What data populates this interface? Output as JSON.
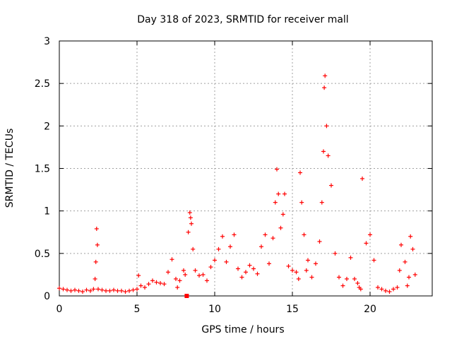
{
  "chart_data": {
    "type": "scatter",
    "title": "Day 318 of 2023, SRMTID for receiver mall",
    "xlabel": "GPS time / hours",
    "ylabel": "SRMTID / TECUs",
    "xlim": [
      0,
      24
    ],
    "ylim": [
      0,
      3
    ],
    "xticks": [
      0,
      5,
      10,
      15,
      20
    ],
    "xtick_labels": [
      "0",
      "5",
      "10",
      "15",
      "20"
    ],
    "yticks": [
      0,
      0.5,
      1,
      1.5,
      2,
      2.5,
      3
    ],
    "ytick_labels": [
      "0",
      "0.5",
      "1",
      "1.5",
      "2",
      "2.5",
      "3"
    ],
    "grid": true,
    "marker": "+",
    "color": "#ff0000",
    "series": [
      {
        "name": "SRMTID",
        "x": [
          0.0,
          0.25,
          0.5,
          0.75,
          1.0,
          1.25,
          1.5,
          1.75,
          2.0,
          2.2,
          2.3,
          2.35,
          2.4,
          2.45,
          2.5,
          2.75,
          3.0,
          3.25,
          3.5,
          3.75,
          4.0,
          4.25,
          4.5,
          4.75,
          5.0,
          5.1,
          5.25,
          5.5,
          5.75,
          6.0,
          6.25,
          6.5,
          6.75,
          7.0,
          7.25,
          7.5,
          7.6,
          7.75,
          8.0,
          8.1,
          8.3,
          8.4,
          8.45,
          8.5,
          8.6,
          8.75,
          9.0,
          9.25,
          9.5,
          9.75,
          10.0,
          10.25,
          10.5,
          10.75,
          11.0,
          11.25,
          11.5,
          11.75,
          12.0,
          12.25,
          12.5,
          12.75,
          13.0,
          13.25,
          13.5,
          13.75,
          13.9,
          14.0,
          14.1,
          14.25,
          14.4,
          14.5,
          14.75,
          15.0,
          15.25,
          15.4,
          15.5,
          15.6,
          15.75,
          15.9,
          16.0,
          16.25,
          16.5,
          16.75,
          16.9,
          17.0,
          17.05,
          17.1,
          17.2,
          17.3,
          17.5,
          17.75,
          18.0,
          18.25,
          18.5,
          18.75,
          19.0,
          19.2,
          19.3,
          19.4,
          19.5,
          19.75,
          20.0,
          20.25,
          20.5,
          20.75,
          21.0,
          21.25,
          21.5,
          21.75,
          21.9,
          22.0,
          22.25,
          22.4,
          22.5,
          22.6,
          22.75,
          22.9
        ],
        "y": [
          0.09,
          0.08,
          0.07,
          0.06,
          0.07,
          0.06,
          0.05,
          0.07,
          0.06,
          0.08,
          0.2,
          0.4,
          0.79,
          0.6,
          0.08,
          0.07,
          0.06,
          0.06,
          0.07,
          0.06,
          0.06,
          0.05,
          0.06,
          0.07,
          0.08,
          0.24,
          0.12,
          0.1,
          0.14,
          0.18,
          0.16,
          0.15,
          0.14,
          0.28,
          0.43,
          0.2,
          0.1,
          0.18,
          0.3,
          0.25,
          0.75,
          0.98,
          0.92,
          0.85,
          0.55,
          0.3,
          0.24,
          0.25,
          0.18,
          0.34,
          0.42,
          0.55,
          0.7,
          0.4,
          0.58,
          0.72,
          0.32,
          0.22,
          0.28,
          0.36,
          0.32,
          0.26,
          0.58,
          0.72,
          0.38,
          0.68,
          1.1,
          1.49,
          1.2,
          0.8,
          0.96,
          1.2,
          0.35,
          0.3,
          0.28,
          0.2,
          1.45,
          1.1,
          0.72,
          0.3,
          0.42,
          0.22,
          0.38,
          0.64,
          1.1,
          1.7,
          2.45,
          2.59,
          2.0,
          1.65,
          1.3,
          0.5,
          0.22,
          0.12,
          0.2,
          0.45,
          0.2,
          0.15,
          0.1,
          0.08,
          1.38,
          0.62,
          0.72,
          0.42,
          0.1,
          0.08,
          0.06,
          0.05,
          0.08,
          0.1,
          0.3,
          0.6,
          0.4,
          0.12,
          0.22,
          0.7,
          0.55,
          0.25
        ]
      }
    ],
    "extra_marker": {
      "x": 8.2,
      "y": 0.0,
      "shape": "square"
    }
  }
}
